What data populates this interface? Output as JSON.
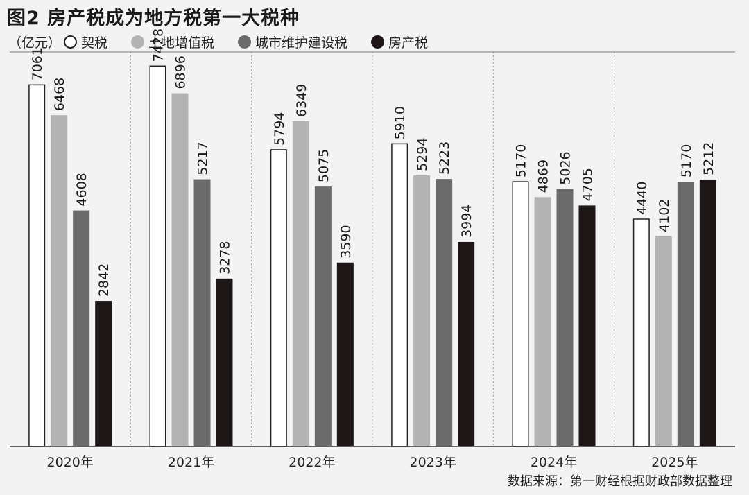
{
  "chart_data": {
    "type": "bar",
    "title": "图2 房产税成为地方税第一大税种",
    "unit": "（亿元）",
    "categories": [
      "2020年",
      "2021年",
      "2022年",
      "2023年",
      "2024年",
      "2025年"
    ],
    "series": [
      {
        "name": "契税",
        "color": "#ffffff",
        "stroke": "#222222",
        "values": [
          7061,
          7428,
          5794,
          5910,
          5170,
          4440
        ]
      },
      {
        "name": "土地增值税",
        "color": "#b3b3b3",
        "stroke": "#b3b3b3",
        "values": [
          6468,
          6896,
          6349,
          5294,
          4869,
          4102
        ]
      },
      {
        "name": "城市维护建设税",
        "color": "#6b6b6b",
        "stroke": "#6b6b6b",
        "values": [
          4608,
          5217,
          5075,
          5223,
          5026,
          5170
        ]
      },
      {
        "name": "房产税",
        "color": "#1c1617",
        "stroke": "#1c1617",
        "values": [
          2842,
          3278,
          3590,
          3994,
          4705,
          5212
        ]
      }
    ],
    "ylim": [
      0,
      8000
    ],
    "grid": "vertical-dotted",
    "legend_position": "top-left",
    "source": "数据来源：第一财经根据财政部数据整理"
  }
}
